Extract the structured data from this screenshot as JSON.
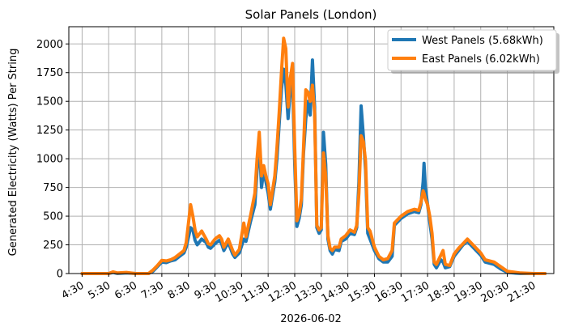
{
  "chart_data": {
    "type": "line",
    "title": "Solar Panels (London)",
    "xlabel": "2026-06-02",
    "ylabel": "Generated Electricity (Watts) Per String",
    "ylim": [
      0,
      2150
    ],
    "xlim": [
      "04:00",
      "22:15"
    ],
    "yticks": [
      0,
      250,
      500,
      750,
      1000,
      1250,
      1500,
      1750,
      2000
    ],
    "xticks": [
      "4:30",
      "5:30",
      "6:30",
      "7:30",
      "8:30",
      "9:30",
      "10:30",
      "11:30",
      "12:30",
      "13:30",
      "14:30",
      "15:30",
      "16:30",
      "17:30",
      "18:30",
      "19:30",
      "20:30",
      "21:30"
    ],
    "grid": true,
    "legend_position": "top-right",
    "series": [
      {
        "name": "West Panels (5.68kWh)",
        "color": "#1f77b4",
        "points": [
          [
            "04:30",
            0
          ],
          [
            "05:30",
            0
          ],
          [
            "05:40",
            10
          ],
          [
            "05:50",
            0
          ],
          [
            "06:10",
            5
          ],
          [
            "06:30",
            0
          ],
          [
            "07:00",
            0
          ],
          [
            "07:10",
            20
          ],
          [
            "07:20",
            60
          ],
          [
            "07:30",
            100
          ],
          [
            "07:40",
            95
          ],
          [
            "07:50",
            110
          ],
          [
            "08:00",
            120
          ],
          [
            "08:10",
            150
          ],
          [
            "08:20",
            180
          ],
          [
            "08:25",
            230
          ],
          [
            "08:35",
            400
          ],
          [
            "08:40",
            380
          ],
          [
            "08:45",
            290
          ],
          [
            "08:50",
            250
          ],
          [
            "09:00",
            300
          ],
          [
            "09:10",
            270
          ],
          [
            "09:15",
            230
          ],
          [
            "09:20",
            220
          ],
          [
            "09:30",
            260
          ],
          [
            "09:40",
            290
          ],
          [
            "09:45",
            260
          ],
          [
            "09:50",
            200
          ],
          [
            "10:00",
            270
          ],
          [
            "10:10",
            170
          ],
          [
            "10:15",
            140
          ],
          [
            "10:25",
            180
          ],
          [
            "10:35",
            300
          ],
          [
            "10:40",
            280
          ],
          [
            "10:50",
            450
          ],
          [
            "11:00",
            600
          ],
          [
            "11:05",
            900
          ],
          [
            "11:10",
            1150
          ],
          [
            "11:15",
            750
          ],
          [
            "11:20",
            900
          ],
          [
            "11:25",
            800
          ],
          [
            "11:30",
            700
          ],
          [
            "11:35",
            560
          ],
          [
            "11:45",
            800
          ],
          [
            "11:50",
            1000
          ],
          [
            "11:55",
            1300
          ],
          [
            "12:00",
            1600
          ],
          [
            "12:05",
            1780
          ],
          [
            "12:10",
            1650
          ],
          [
            "12:15",
            1350
          ],
          [
            "12:20",
            1600
          ],
          [
            "12:25",
            1700
          ],
          [
            "12:30",
            950
          ],
          [
            "12:35",
            410
          ],
          [
            "12:40",
            480
          ],
          [
            "12:45",
            600
          ],
          [
            "12:50",
            1050
          ],
          [
            "12:55",
            1350
          ],
          [
            "13:00",
            1500
          ],
          [
            "13:05",
            1380
          ],
          [
            "13:10",
            1860
          ],
          [
            "13:15",
            1450
          ],
          [
            "13:20",
            400
          ],
          [
            "13:25",
            350
          ],
          [
            "13:30",
            380
          ],
          [
            "13:35",
            1230
          ],
          [
            "13:40",
            950
          ],
          [
            "13:45",
            300
          ],
          [
            "13:50",
            200
          ],
          [
            "13:55",
            170
          ],
          [
            "14:00",
            210
          ],
          [
            "14:10",
            200
          ],
          [
            "14:15",
            280
          ],
          [
            "14:25",
            300
          ],
          [
            "14:35",
            350
          ],
          [
            "14:45",
            340
          ],
          [
            "14:50",
            400
          ],
          [
            "14:55",
            800
          ],
          [
            "15:00",
            1460
          ],
          [
            "15:05",
            1200
          ],
          [
            "15:10",
            900
          ],
          [
            "15:15",
            350
          ],
          [
            "15:20",
            300
          ],
          [
            "15:30",
            200
          ],
          [
            "15:40",
            130
          ],
          [
            "15:50",
            100
          ],
          [
            "16:00",
            100
          ],
          [
            "16:10",
            150
          ],
          [
            "16:15",
            420
          ],
          [
            "16:30",
            480
          ],
          [
            "16:45",
            520
          ],
          [
            "17:00",
            540
          ],
          [
            "17:10",
            530
          ],
          [
            "17:15",
            600
          ],
          [
            "17:20",
            800
          ],
          [
            "17:22",
            960
          ],
          [
            "17:25",
            750
          ],
          [
            "17:30",
            600
          ],
          [
            "17:35",
            450
          ],
          [
            "17:40",
            300
          ],
          [
            "17:45",
            80
          ],
          [
            "17:50",
            50
          ],
          [
            "18:00",
            120
          ],
          [
            "18:05",
            100
          ],
          [
            "18:10",
            50
          ],
          [
            "18:20",
            60
          ],
          [
            "18:30",
            150
          ],
          [
            "18:40",
            200
          ],
          [
            "18:50",
            250
          ],
          [
            "19:00",
            280
          ],
          [
            "19:10",
            240
          ],
          [
            "19:30",
            160
          ],
          [
            "19:40",
            100
          ],
          [
            "20:00",
            80
          ],
          [
            "20:15",
            40
          ],
          [
            "20:30",
            10
          ],
          [
            "21:00",
            0
          ],
          [
            "21:30",
            0
          ],
          [
            "21:55",
            0
          ]
        ]
      },
      {
        "name": "East Panels (6.02kWh)",
        "color": "#ff7f0e",
        "points": [
          [
            "04:30",
            0
          ],
          [
            "05:30",
            0
          ],
          [
            "05:40",
            15
          ],
          [
            "05:50",
            5
          ],
          [
            "06:10",
            10
          ],
          [
            "06:30",
            0
          ],
          [
            "07:00",
            0
          ],
          [
            "07:10",
            30
          ],
          [
            "07:20",
            70
          ],
          [
            "07:30",
            115
          ],
          [
            "07:40",
            110
          ],
          [
            "07:50",
            120
          ],
          [
            "08:00",
            140
          ],
          [
            "08:10",
            170
          ],
          [
            "08:20",
            200
          ],
          [
            "08:25",
            270
          ],
          [
            "08:35",
            600
          ],
          [
            "08:40",
            500
          ],
          [
            "08:45",
            380
          ],
          [
            "08:50",
            320
          ],
          [
            "09:00",
            370
          ],
          [
            "09:10",
            300
          ],
          [
            "09:15",
            260
          ],
          [
            "09:20",
            250
          ],
          [
            "09:30",
            300
          ],
          [
            "09:40",
            330
          ],
          [
            "09:45",
            300
          ],
          [
            "09:50",
            230
          ],
          [
            "10:00",
            300
          ],
          [
            "10:10",
            200
          ],
          [
            "10:15",
            160
          ],
          [
            "10:25",
            210
          ],
          [
            "10:35",
            440
          ],
          [
            "10:40",
            320
          ],
          [
            "10:50",
            500
          ],
          [
            "11:00",
            700
          ],
          [
            "11:05",
            1000
          ],
          [
            "11:10",
            1230
          ],
          [
            "11:15",
            850
          ],
          [
            "11:20",
            940
          ],
          [
            "11:25",
            850
          ],
          [
            "11:30",
            780
          ],
          [
            "11:35",
            600
          ],
          [
            "11:45",
            850
          ],
          [
            "11:50",
            1100
          ],
          [
            "11:55",
            1400
          ],
          [
            "12:00",
            1750
          ],
          [
            "12:05",
            2050
          ],
          [
            "12:10",
            1960
          ],
          [
            "12:15",
            1450
          ],
          [
            "12:20",
            1700
          ],
          [
            "12:25",
            1830
          ],
          [
            "12:30",
            1100
          ],
          [
            "12:35",
            460
          ],
          [
            "12:40",
            520
          ],
          [
            "12:45",
            650
          ],
          [
            "12:50",
            1100
          ],
          [
            "12:55",
            1600
          ],
          [
            "13:00",
            1580
          ],
          [
            "13:05",
            1500
          ],
          [
            "13:10",
            1640
          ],
          [
            "13:15",
            1400
          ],
          [
            "13:20",
            420
          ],
          [
            "13:25",
            380
          ],
          [
            "13:30",
            400
          ],
          [
            "13:35",
            1050
          ],
          [
            "13:40",
            850
          ],
          [
            "13:45",
            330
          ],
          [
            "13:50",
            220
          ],
          [
            "13:55",
            200
          ],
          [
            "14:00",
            230
          ],
          [
            "14:10",
            230
          ],
          [
            "14:15",
            300
          ],
          [
            "14:25",
            330
          ],
          [
            "14:35",
            380
          ],
          [
            "14:45",
            360
          ],
          [
            "14:50",
            420
          ],
          [
            "14:55",
            700
          ],
          [
            "15:00",
            1200
          ],
          [
            "15:05",
            1150
          ],
          [
            "15:10",
            980
          ],
          [
            "15:15",
            400
          ],
          [
            "15:20",
            370
          ],
          [
            "15:30",
            230
          ],
          [
            "15:40",
            150
          ],
          [
            "15:50",
            120
          ],
          [
            "16:00",
            130
          ],
          [
            "16:10",
            200
          ],
          [
            "16:15",
            440
          ],
          [
            "16:30",
            500
          ],
          [
            "16:45",
            540
          ],
          [
            "17:00",
            560
          ],
          [
            "17:10",
            550
          ],
          [
            "17:15",
            620
          ],
          [
            "17:20",
            720
          ],
          [
            "17:22",
            700
          ],
          [
            "17:25",
            650
          ],
          [
            "17:30",
            600
          ],
          [
            "17:35",
            500
          ],
          [
            "17:40",
            350
          ],
          [
            "17:45",
            100
          ],
          [
            "17:50",
            80
          ],
          [
            "18:00",
            160
          ],
          [
            "18:05",
            200
          ],
          [
            "18:10",
            80
          ],
          [
            "18:20",
            70
          ],
          [
            "18:30",
            170
          ],
          [
            "18:40",
            220
          ],
          [
            "18:50",
            260
          ],
          [
            "19:00",
            300
          ],
          [
            "19:10",
            260
          ],
          [
            "19:30",
            180
          ],
          [
            "19:40",
            120
          ],
          [
            "20:00",
            100
          ],
          [
            "20:15",
            60
          ],
          [
            "20:30",
            20
          ],
          [
            "21:00",
            5
          ],
          [
            "21:30",
            0
          ],
          [
            "21:55",
            0
          ]
        ]
      }
    ]
  }
}
